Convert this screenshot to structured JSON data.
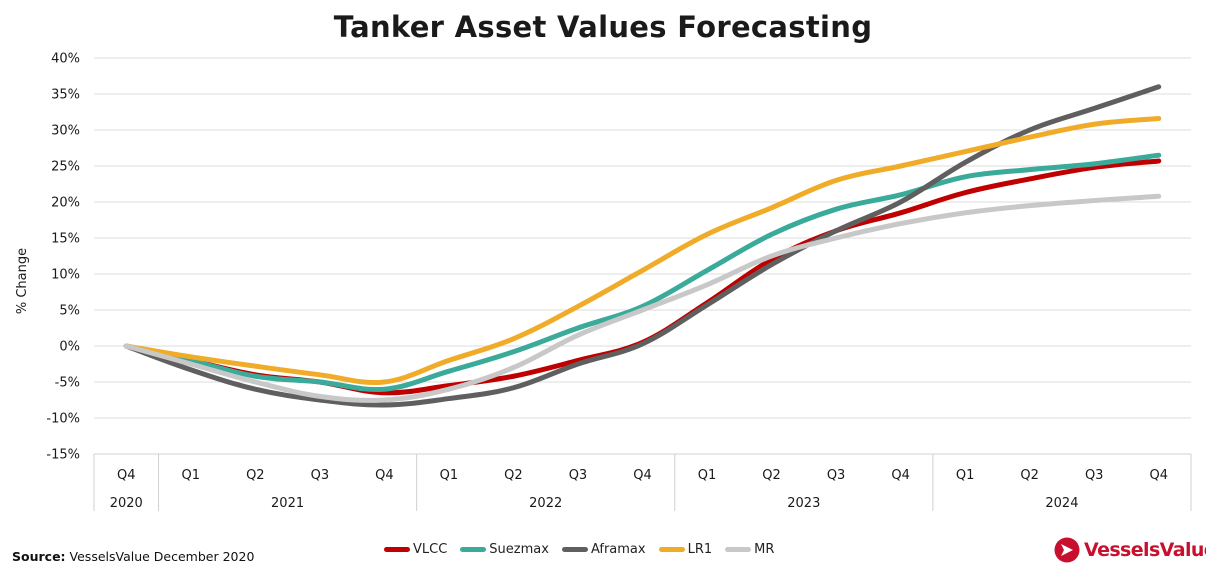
{
  "chart_data": {
    "type": "line",
    "title": "Tanker Asset Values Forecasting",
    "ylabel": "% Change",
    "ylim": [
      -15,
      40
    ],
    "yticks": [
      "40%",
      "35%",
      "30%",
      "25%",
      "20%",
      "15%",
      "10%",
      "5%",
      "0%",
      "-5%",
      "-10%",
      "-15%"
    ],
    "ytick_values": [
      40,
      35,
      30,
      25,
      20,
      15,
      10,
      5,
      0,
      -5,
      -10,
      -15
    ],
    "x_quarters": [
      "Q4",
      "Q1",
      "Q2",
      "Q3",
      "Q4",
      "Q1",
      "Q2",
      "Q3",
      "Q4",
      "Q1",
      "Q2",
      "Q3",
      "Q4",
      "Q1",
      "Q2",
      "Q3",
      "Q4"
    ],
    "x_years": [
      {
        "label": "2020",
        "span": 1
      },
      {
        "label": "2021",
        "span": 4
      },
      {
        "label": "2022",
        "span": 4
      },
      {
        "label": "2023",
        "span": 4
      },
      {
        "label": "2024",
        "span": 4
      }
    ],
    "grid": true,
    "legend_position": "bottom",
    "series": [
      {
        "name": "VLCC",
        "color": "#c00000",
        "values": [
          0,
          -2,
          -4,
          -5,
          -6.5,
          -5.5,
          -4.2,
          -2,
          0.5,
          6,
          12,
          16,
          18.5,
          21.3,
          23.2,
          24.8,
          25.7
        ]
      },
      {
        "name": "Suezmax",
        "color": "#3aaa9b",
        "values": [
          0,
          -2,
          -4.2,
          -5,
          -6,
          -3.5,
          -0.8,
          2.5,
          5.5,
          10.5,
          15.5,
          19,
          21,
          23.5,
          24.5,
          25.3,
          26.5
        ]
      },
      {
        "name": "Aframax",
        "color": "#5f5f5f",
        "values": [
          0,
          -3.3,
          -6,
          -7.5,
          -8.2,
          -7.3,
          -5.8,
          -2.5,
          0.3,
          5.7,
          11.3,
          16,
          20,
          25.5,
          30,
          33,
          36
        ]
      },
      {
        "name": "LR1",
        "color": "#f0ac28",
        "values": [
          0,
          -1.5,
          -2.8,
          -4,
          -5,
          -2,
          1,
          5.5,
          10.5,
          15.5,
          19.2,
          23,
          25,
          27,
          29,
          30.8,
          31.6
        ]
      },
      {
        "name": "MR",
        "color": "#c8c8c8",
        "values": [
          0,
          -2.5,
          -5,
          -7,
          -7.5,
          -6,
          -3,
          1.5,
          5,
          8.5,
          12.5,
          15,
          17,
          18.5,
          19.5,
          20.2,
          20.8
        ]
      }
    ]
  },
  "source": {
    "label": "Source:",
    "text": "VesselsValue December 2020"
  },
  "brand": {
    "name": "VesselsValue",
    "color": "#c8102e"
  }
}
